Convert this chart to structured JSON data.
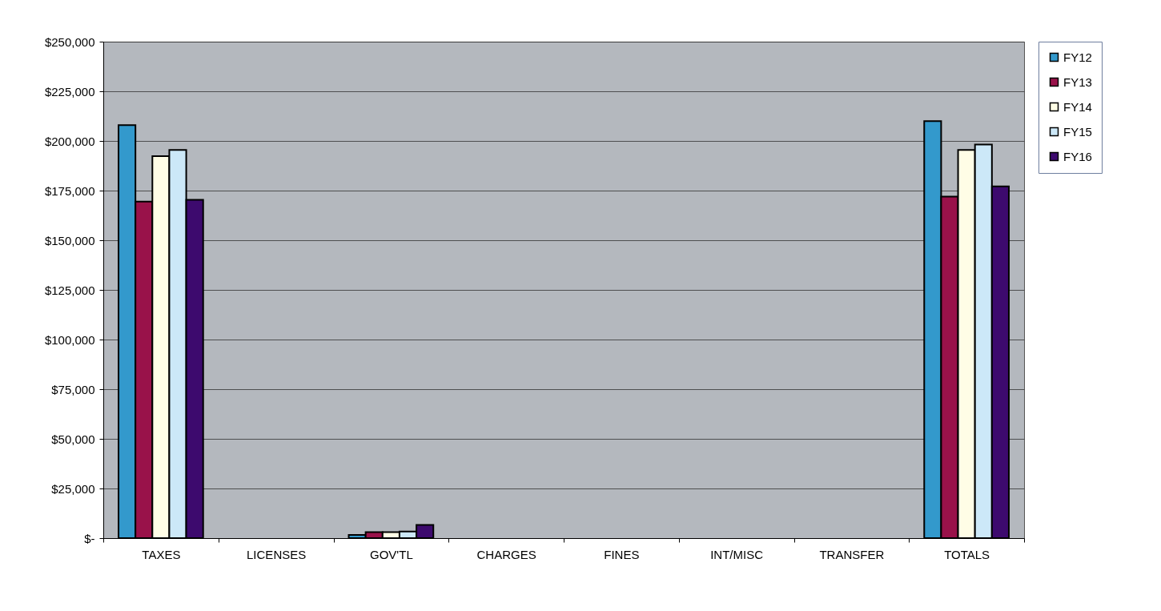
{
  "chart_data": {
    "type": "bar",
    "categories": [
      "TAXES",
      "LICENSES",
      "GOV'TL",
      "CHARGES",
      "FINES",
      "INT/MISC",
      "TRANSFER",
      "TOTALS"
    ],
    "series": [
      {
        "name": "FY12",
        "color": "#3399cc",
        "values": [
          208000,
          null,
          1600,
          null,
          null,
          null,
          null,
          210000
        ]
      },
      {
        "name": "FY13",
        "color": "#99124a",
        "values": [
          169500,
          null,
          3000,
          null,
          null,
          null,
          null,
          172000
        ]
      },
      {
        "name": "FY14",
        "color": "#fffde6",
        "values": [
          192300,
          null,
          3000,
          null,
          null,
          null,
          null,
          195500
        ]
      },
      {
        "name": "FY15",
        "color": "#cce8f8",
        "values": [
          195500,
          null,
          3300,
          null,
          null,
          null,
          null,
          198200
        ]
      },
      {
        "name": "FY16",
        "color": "#3d0a6e",
        "values": [
          170400,
          null,
          6700,
          null,
          null,
          null,
          null,
          177100
        ]
      }
    ],
    "ylim": [
      0,
      250000
    ],
    "yticks": [
      {
        "value": 0,
        "label": "$-"
      },
      {
        "value": 25000,
        "label": "$25,000"
      },
      {
        "value": 50000,
        "label": "$50,000"
      },
      {
        "value": 75000,
        "label": "$75,000"
      },
      {
        "value": 100000,
        "label": "$100,000"
      },
      {
        "value": 125000,
        "label": "$125,000"
      },
      {
        "value": 150000,
        "label": "$150,000"
      },
      {
        "value": 175000,
        "label": "$175,000"
      },
      {
        "value": 200000,
        "label": "$200,000"
      },
      {
        "value": 225000,
        "label": "$225,000"
      },
      {
        "value": 250000,
        "label": "$250,000"
      }
    ],
    "grid": "y",
    "legend": "right"
  }
}
